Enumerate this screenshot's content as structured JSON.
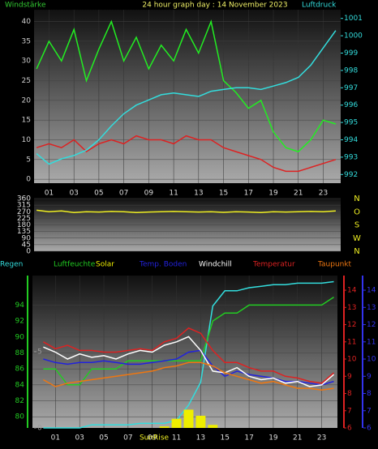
{
  "header": {
    "title": "24 hour graph day : 14 November 2023"
  },
  "chart_data": [
    {
      "type": "line",
      "y_label": "Windstärke",
      "y2_label": "Luftdruck",
      "x": [
        0,
        1,
        2,
        3,
        4,
        5,
        6,
        7,
        8,
        9,
        10,
        11,
        12,
        13,
        14,
        15,
        16,
        17,
        18,
        19,
        20,
        21,
        22,
        23,
        24
      ],
      "xlim": [
        -0.2,
        24.4
      ],
      "xticks": [
        {
          "value": 1,
          "label": "01"
        },
        {
          "value": 3,
          "label": "03"
        },
        {
          "value": 5,
          "label": "05"
        },
        {
          "value": 7,
          "label": "07"
        },
        {
          "value": 9,
          "label": "09"
        },
        {
          "value": 11,
          "label": "11"
        },
        {
          "value": 13,
          "label": "13"
        },
        {
          "value": 15,
          "label": "15"
        },
        {
          "value": 17,
          "label": "17"
        },
        {
          "value": 19,
          "label": "19"
        },
        {
          "value": 21,
          "label": "21"
        },
        {
          "value": 23,
          "label": "23"
        }
      ],
      "ylim": [
        -1,
        43
      ],
      "yticks": [
        0,
        5,
        10,
        15,
        20,
        25,
        30,
        35,
        40
      ],
      "y2lim": [
        991.5,
        1001.5
      ],
      "y2ticks": [
        992,
        993,
        994,
        995,
        996,
        997,
        998,
        999,
        1000,
        1001
      ],
      "series": [
        {
          "color": "#22ee22",
          "axis": "y",
          "values": [
            28,
            35,
            30,
            38,
            25,
            33,
            40,
            30,
            36,
            28,
            34,
            30,
            38,
            32,
            40,
            25,
            22,
            18,
            20,
            12,
            8,
            7,
            10,
            15,
            14
          ]
        },
        {
          "color": "#dd2222",
          "axis": "y",
          "values": [
            8,
            9,
            8,
            10,
            7,
            9,
            10,
            9,
            11,
            10,
            10,
            9,
            11,
            10,
            10,
            8,
            7,
            6,
            5,
            3,
            2,
            2,
            3,
            4,
            5
          ]
        },
        {
          "color": "#33dddd",
          "axis": "y2",
          "values": [
            993.2,
            992.6,
            992.9,
            993.1,
            993.4,
            994.0,
            994.8,
            995.5,
            996.0,
            996.3,
            996.6,
            996.7,
            996.6,
            996.5,
            996.8,
            996.9,
            997.0,
            997.0,
            996.9,
            997.1,
            997.3,
            997.6,
            998.3,
            999.3,
            1000.3
          ]
        }
      ]
    },
    {
      "type": "line",
      "compass": [
        "N",
        "W",
        "S",
        "O",
        "N"
      ],
      "x": [
        0,
        1,
        2,
        3,
        4,
        5,
        6,
        7,
        8,
        9,
        10,
        11,
        12,
        13,
        14,
        15,
        16,
        17,
        18,
        19,
        20,
        21,
        22,
        23,
        24
      ],
      "xlim": [
        -0.2,
        24.4
      ],
      "ylim": [
        0,
        360
      ],
      "yticks": [
        0,
        45,
        90,
        135,
        180,
        225,
        270,
        315,
        360
      ],
      "series": [
        {
          "color": "#eeee22",
          "axis": "y",
          "values": [
            280,
            270,
            275,
            265,
            270,
            268,
            272,
            270,
            265,
            268,
            270,
            272,
            270,
            268,
            270,
            266,
            270,
            268,
            265,
            270,
            268,
            270,
            272,
            270,
            275
          ]
        }
      ]
    },
    {
      "type": "line",
      "annotation": "SunRise",
      "x": [
        0,
        1,
        2,
        3,
        4,
        5,
        6,
        7,
        8,
        9,
        10,
        11,
        12,
        13,
        14,
        15,
        16,
        17,
        18,
        19,
        20,
        21,
        22,
        23,
        24
      ],
      "xlim": [
        -0.9,
        24.3
      ],
      "xticks": [
        {
          "value": 1,
          "label": "01"
        },
        {
          "value": 3,
          "label": "03"
        },
        {
          "value": 5,
          "label": "05"
        },
        {
          "value": 7,
          "label": "07"
        },
        {
          "value": 9,
          "label": "09"
        },
        {
          "value": 11,
          "label": "11"
        },
        {
          "value": 13,
          "label": "13"
        },
        {
          "value": 15,
          "label": "15"
        },
        {
          "value": 17,
          "label": "17"
        },
        {
          "value": 19,
          "label": "19"
        },
        {
          "value": 21,
          "label": "21"
        },
        {
          "value": 23,
          "label": "23"
        }
      ],
      "ylim": [
        78.6,
        97.7
      ],
      "yticks": [
        80,
        82,
        84,
        86,
        88,
        90,
        92,
        94
      ],
      "y2lim": [
        6,
        14.85
      ],
      "y2ticks": [
        6,
        7,
        8,
        9,
        10,
        11,
        12,
        13,
        14
      ],
      "y3lim": [
        6,
        14.85
      ],
      "y3ticks": [
        6,
        7,
        8,
        9,
        10,
        11,
        12,
        13,
        14
      ],
      "y4lim": [
        0,
        10
      ],
      "y4ticks": [
        0,
        5
      ],
      "y5lim": [
        0,
        500
      ],
      "series": [
        {
          "name": "Regen",
          "color": "#33dddd",
          "axis": "y4",
          "values": [
            0,
            0,
            0,
            0,
            0.2,
            0.2,
            0.2,
            0.2,
            0.3,
            0.3,
            0.3,
            0.5,
            1.5,
            3,
            8,
            9,
            9,
            9.2,
            9.3,
            9.4,
            9.4,
            9.5,
            9.5,
            9.5,
            9.6
          ]
        },
        {
          "name": "Luftfeuchte",
          "color": "#22cc22",
          "axis": "y",
          "values": [
            86,
            86,
            84,
            84,
            86,
            86,
            86,
            87,
            87,
            87,
            87,
            87,
            87,
            87,
            92,
            93,
            93,
            94,
            94,
            94,
            94,
            94,
            94,
            94,
            95
          ]
        },
        {
          "name": "Solar",
          "color": "#eeee00",
          "axis": "y5",
          "kind": "bar",
          "values": [
            0,
            0,
            0,
            0,
            0,
            0,
            0,
            0,
            0,
            0,
            5,
            30,
            60,
            40,
            10,
            0,
            0,
            0,
            0,
            0,
            0,
            0,
            0,
            0,
            0
          ]
        },
        {
          "name": "Temp. Boden",
          "color": "#2222dd",
          "axis": "y3",
          "values": [
            10.0,
            9.8,
            9.7,
            9.8,
            9.8,
            9.9,
            9.8,
            9.7,
            9.7,
            9.8,
            9.9,
            10.0,
            10.4,
            10.5,
            9.6,
            9.0,
            9.3,
            9.1,
            9.0,
            8.9,
            8.7,
            8.7,
            8.6,
            8.5,
            8.7
          ]
        },
        {
          "name": "Windchill",
          "color": "#ffffff",
          "axis": "y2",
          "values": [
            10.7,
            10.4,
            10.0,
            10.3,
            10.1,
            10.2,
            10.0,
            10.3,
            10.5,
            10.4,
            10.8,
            11.0,
            11.3,
            10.5,
            9.3,
            9.2,
            9.5,
            9.0,
            8.8,
            8.9,
            8.6,
            8.7,
            8.4,
            8.5,
            9.1
          ]
        },
        {
          "name": "Temperatur",
          "color": "#dd2222",
          "axis": "y2",
          "values": [
            11.0,
            10.6,
            10.8,
            10.5,
            10.5,
            10.4,
            10.4,
            10.5,
            10.6,
            10.5,
            11.0,
            11.2,
            11.8,
            11.5,
            10.5,
            9.8,
            9.8,
            9.5,
            9.3,
            9.3,
            9.0,
            8.9,
            8.7,
            8.6,
            9.2
          ]
        },
        {
          "name": "Taupunkt",
          "color": "#ee7711",
          "axis": "y2",
          "values": [
            8.8,
            8.4,
            8.6,
            8.7,
            8.8,
            8.9,
            9.0,
            9.1,
            9.2,
            9.3,
            9.5,
            9.6,
            9.8,
            9.8,
            9.6,
            9.2,
            9.0,
            8.8,
            8.6,
            8.7,
            8.5,
            8.3,
            8.3,
            8.2,
            8.3
          ]
        }
      ]
    }
  ]
}
